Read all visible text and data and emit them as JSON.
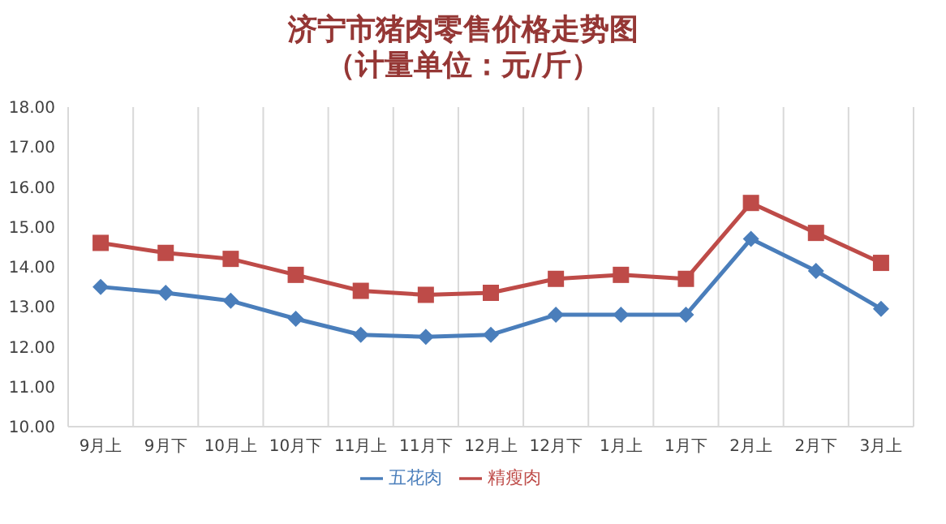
{
  "chart_data": {
    "type": "line",
    "title": "济宁市猪肉零售价格走势图",
    "subtitle": "（计量单位：元/斤）",
    "categories": [
      "9月上",
      "9月下",
      "10月上",
      "10月下",
      "11月上",
      "11月下",
      "12月上",
      "12月下",
      "1月上",
      "1月下",
      "2月上",
      "2月下",
      "3月上"
    ],
    "series": [
      {
        "name": "五花肉",
        "color": "#4a7ebb",
        "marker": "diamond",
        "values": [
          13.5,
          13.35,
          13.15,
          12.7,
          12.3,
          12.25,
          12.3,
          12.8,
          12.8,
          12.8,
          14.7,
          13.9,
          12.95
        ]
      },
      {
        "name": "精瘦肉",
        "color": "#be4b48",
        "marker": "square",
        "values": [
          14.6,
          14.35,
          14.2,
          13.8,
          13.4,
          13.3,
          13.35,
          13.7,
          13.8,
          13.7,
          15.6,
          14.85,
          14.1
        ]
      }
    ],
    "ylim": [
      10,
      18
    ],
    "yticks": [
      {
        "value": 10,
        "label": "10.00"
      },
      {
        "value": 11,
        "label": "11.00"
      },
      {
        "value": 12,
        "label": "12.00"
      },
      {
        "value": 13,
        "label": "13.00"
      },
      {
        "value": 14,
        "label": "14.00"
      },
      {
        "value": 15,
        "label": "15.00"
      },
      {
        "value": 16,
        "label": "16.00"
      },
      {
        "value": 17,
        "label": "17.00"
      },
      {
        "value": 18,
        "label": "18.00"
      }
    ],
    "grid": "x",
    "legend": "bottom"
  }
}
